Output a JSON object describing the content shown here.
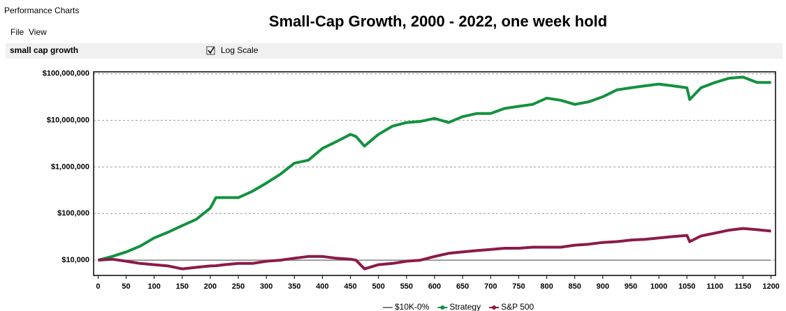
{
  "window_title": "Performance Charts",
  "menu": [
    "File",
    "View"
  ],
  "panel_label": "small cap growth",
  "checkbox": {
    "label": "Log Scale",
    "checked": true
  },
  "chart_data": {
    "type": "line",
    "title": "Small-Cap Growth, 2000 - 2022, one week hold",
    "log_scale": true,
    "grid": true,
    "legend": "bottom",
    "xlim": [
      -8,
      1208
    ],
    "xticks": [
      0,
      50,
      100,
      150,
      200,
      250,
      300,
      350,
      400,
      450,
      500,
      550,
      600,
      650,
      700,
      750,
      800,
      850,
      900,
      950,
      1000,
      1050,
      1100,
      1150,
      1200
    ],
    "ylim": [
      4700,
      110000000
    ],
    "yticks": [
      {
        "value": 10000,
        "label": "$10,000"
      },
      {
        "value": 100000,
        "label": "$100,000"
      },
      {
        "value": 1000000,
        "label": "$1,000,000"
      },
      {
        "value": 10000000,
        "label": "$10,000,000"
      },
      {
        "value": 100000000,
        "label": "$100,000,000"
      }
    ],
    "x": [
      0,
      25,
      50,
      75,
      100,
      125,
      150,
      175,
      200,
      210,
      225,
      250,
      275,
      300,
      325,
      350,
      375,
      400,
      425,
      450,
      460,
      475,
      500,
      525,
      550,
      575,
      600,
      625,
      650,
      675,
      700,
      725,
      750,
      775,
      800,
      825,
      850,
      875,
      900,
      925,
      950,
      975,
      1000,
      1025,
      1050,
      1055,
      1075,
      1100,
      1125,
      1150,
      1175,
      1200
    ],
    "series": [
      {
        "name": "$10K-0%",
        "color": "#808080",
        "x": [
          0,
          1200
        ],
        "values": [
          10000,
          10000
        ]
      },
      {
        "name": "Strategy",
        "color": "#13913f",
        "values": [
          10000,
          12000,
          15000,
          20000,
          30000,
          40000,
          55000,
          75000,
          130000,
          220000,
          220000,
          220000,
          300000,
          450000,
          700000,
          1200000,
          1400000,
          2500000,
          3500000,
          5000000,
          4500000,
          2800000,
          5000000,
          7500000,
          9000000,
          9500000,
          11000000,
          9000000,
          12000000,
          14000000,
          14000000,
          18000000,
          20000000,
          22000000,
          30000000,
          27000000,
          22000000,
          25000000,
          32000000,
          45000000,
          50000000,
          55000000,
          60000000,
          55000000,
          50000000,
          28000000,
          50000000,
          65000000,
          80000000,
          85000000,
          65000000,
          65000000
        ]
      },
      {
        "name": "S&P 500",
        "color": "#8b1a4a",
        "values": [
          10000,
          10500,
          9500,
          8500,
          8000,
          7500,
          6500,
          7000,
          7500,
          7600,
          8000,
          8500,
          8500,
          9500,
          10000,
          11000,
          12000,
          12000,
          11000,
          10500,
          10000,
          6500,
          8000,
          8500,
          9500,
          10000,
          12000,
          14000,
          15000,
          16000,
          17000,
          18000,
          18000,
          19000,
          19000,
          19000,
          21000,
          22000,
          24000,
          25000,
          27000,
          28000,
          30000,
          32000,
          34000,
          25000,
          33000,
          38000,
          44000,
          48000,
          45000,
          42000
        ]
      }
    ]
  }
}
